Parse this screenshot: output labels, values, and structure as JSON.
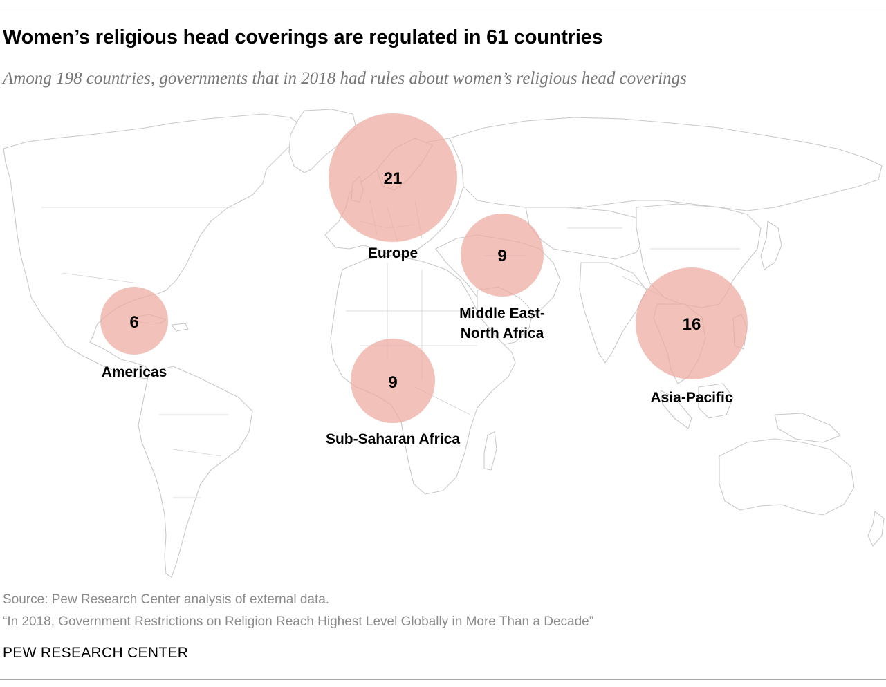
{
  "header": {
    "title": "Women’s religious head coverings are regulated in 61 countries",
    "subtitle": "Among 198 countries, governments that in 2018 had rules about women’s religious head coverings"
  },
  "map": {
    "bubble_color": "#eda9a0",
    "regions": [
      {
        "name": "Europe",
        "count": "21",
        "value": 21
      },
      {
        "name": "Middle East-North Africa",
        "count": "9",
        "value": 9
      },
      {
        "name": "Americas",
        "count": "6",
        "value": 6
      },
      {
        "name": "Sub-Saharan Africa",
        "count": "9",
        "value": 9
      },
      {
        "name": "Asia-Pacific",
        "count": "16",
        "value": 16
      }
    ],
    "label_lines": {
      "europe": "Europe",
      "mena_1": "Middle East-",
      "mena_2": "North Africa",
      "americas": "Americas",
      "ssa": "Sub-Saharan Africa",
      "asia": "Asia-Pacific"
    }
  },
  "footer": {
    "source": "Source: Pew Research Center analysis of external data.",
    "report": "“In 2018, Government Restrictions on Religion Reach Highest Level Globally in More Than a Decade”",
    "brand": "PEW RESEARCH CENTER"
  }
}
